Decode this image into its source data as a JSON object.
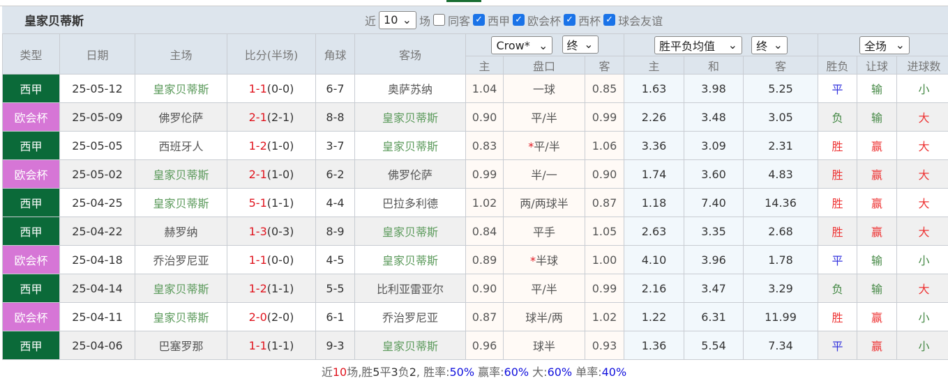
{
  "team_title": "皇家贝蒂斯",
  "filters": {
    "near": "近",
    "count": "10",
    "games": "场",
    "same_home": "同客",
    "leagues": [
      "西甲",
      "欧会杯",
      "西杯",
      "球会友谊"
    ]
  },
  "headers": {
    "type": "类型",
    "date": "日期",
    "home": "主场",
    "score": "比分(半场)",
    "corner": "角球",
    "away": "客场",
    "company": "Crow*",
    "stage1": "终",
    "odds_type": "胜平负均值",
    "stage2": "终",
    "period": "全场",
    "ah": [
      "主",
      "盘口",
      "客"
    ],
    "eu": [
      "主",
      "和",
      "客"
    ],
    "res": [
      "胜负",
      "让球",
      "进球数"
    ]
  },
  "colors": {
    "league_xj": "#0b6a39",
    "league_ohb": "#d676d6",
    "win": "#ee3333",
    "lose": "#448844",
    "draw": "#3333dd"
  },
  "rows": [
    {
      "type": "西甲",
      "date": "25-05-12",
      "home": "皇家贝蒂斯",
      "ft": "1-1",
      "ht": "(0-0)",
      "corner": "6-7",
      "away": "奥萨苏纳",
      "ah_h": "1.04",
      "star": "",
      "line": "一球",
      "ah_a": "0.85",
      "eu_h": "1.63",
      "eu_d": "3.98",
      "eu_a": "5.25",
      "r1": "平",
      "r2": "输",
      "r3": "小"
    },
    {
      "type": "欧会杯",
      "date": "25-05-09",
      "home": "佛罗伦萨",
      "ft": "2-1",
      "ht": "(2-1)",
      "corner": "8-8",
      "away": "皇家贝蒂斯",
      "ah_h": "0.90",
      "star": "",
      "line": "平/半",
      "ah_a": "0.99",
      "eu_h": "2.26",
      "eu_d": "3.48",
      "eu_a": "3.05",
      "r1": "负",
      "r2": "输",
      "r3": "大"
    },
    {
      "type": "西甲",
      "date": "25-05-05",
      "home": "西班牙人",
      "ft": "1-2",
      "ht": "(1-0)",
      "corner": "3-7",
      "away": "皇家贝蒂斯",
      "ah_h": "0.83",
      "star": "*",
      "line": "平/半",
      "ah_a": "1.06",
      "eu_h": "3.36",
      "eu_d": "3.09",
      "eu_a": "2.31",
      "r1": "胜",
      "r2": "赢",
      "r3": "大"
    },
    {
      "type": "欧会杯",
      "date": "25-05-02",
      "home": "皇家贝蒂斯",
      "ft": "2-1",
      "ht": "(1-0)",
      "corner": "6-2",
      "away": "佛罗伦萨",
      "ah_h": "0.99",
      "star": "",
      "line": "半/一",
      "ah_a": "0.90",
      "eu_h": "1.74",
      "eu_d": "3.60",
      "eu_a": "4.83",
      "r1": "胜",
      "r2": "赢",
      "r3": "大"
    },
    {
      "type": "西甲",
      "date": "25-04-25",
      "home": "皇家贝蒂斯",
      "ft": "5-1",
      "ht": "(1-1)",
      "corner": "4-4",
      "away": "巴拉多利德",
      "ah_h": "1.02",
      "star": "",
      "line": "两/两球半",
      "ah_a": "0.87",
      "eu_h": "1.18",
      "eu_d": "7.40",
      "eu_a": "14.36",
      "r1": "胜",
      "r2": "赢",
      "r3": "大"
    },
    {
      "type": "西甲",
      "date": "25-04-22",
      "home": "赫罗纳",
      "ft": "1-3",
      "ht": "(0-3)",
      "corner": "8-9",
      "away": "皇家贝蒂斯",
      "ah_h": "0.84",
      "star": "",
      "line": "平手",
      "ah_a": "1.05",
      "eu_h": "2.63",
      "eu_d": "3.35",
      "eu_a": "2.68",
      "r1": "胜",
      "r2": "赢",
      "r3": "大"
    },
    {
      "type": "欧会杯",
      "date": "25-04-18",
      "home": "乔治罗尼亚",
      "ft": "1-1",
      "ht": "(0-0)",
      "corner": "4-5",
      "away": "皇家贝蒂斯",
      "ah_h": "0.89",
      "star": "*",
      "line": "半球",
      "ah_a": "1.00",
      "eu_h": "4.10",
      "eu_d": "3.96",
      "eu_a": "1.78",
      "r1": "平",
      "r2": "输",
      "r3": "小"
    },
    {
      "type": "西甲",
      "date": "25-04-14",
      "home": "皇家贝蒂斯",
      "ft": "1-2",
      "ht": "(1-1)",
      "corner": "5-5",
      "away": "比利亚雷亚尔",
      "ah_h": "0.90",
      "star": "",
      "line": "平/半",
      "ah_a": "0.99",
      "eu_h": "2.16",
      "eu_d": "3.47",
      "eu_a": "3.29",
      "r1": "负",
      "r2": "输",
      "r3": "大"
    },
    {
      "type": "欧会杯",
      "date": "25-04-11",
      "home": "皇家贝蒂斯",
      "ft": "2-0",
      "ht": "(2-0)",
      "corner": "6-1",
      "away": "乔治罗尼亚",
      "ah_h": "0.87",
      "star": "",
      "line": "球半/两",
      "ah_a": "1.02",
      "eu_h": "1.22",
      "eu_d": "6.31",
      "eu_a": "11.99",
      "r1": "胜",
      "r2": "赢",
      "r3": "小"
    },
    {
      "type": "西甲",
      "date": "25-04-06",
      "home": "巴塞罗那",
      "ft": "1-1",
      "ht": "(1-1)",
      "corner": "9-3",
      "away": "皇家贝蒂斯",
      "ah_h": "0.96",
      "star": "",
      "line": "球半",
      "ah_a": "0.93",
      "eu_h": "1.36",
      "eu_d": "5.54",
      "eu_a": "7.34",
      "r1": "平",
      "r2": "赢",
      "r3": "小"
    }
  ],
  "summary": {
    "p1": "近",
    "n": "10",
    "p2": "场,胜",
    "w": "5",
    "p3": "平",
    "d": "3",
    "p4": "负",
    "l": "2",
    "p5": ", 胜率:",
    "wr": "50%",
    "p6": " 赢率:",
    "ar": "60%",
    "p7": " 大:",
    "or": "60%",
    "p8": " 单率:",
    "odd": "40%"
  }
}
